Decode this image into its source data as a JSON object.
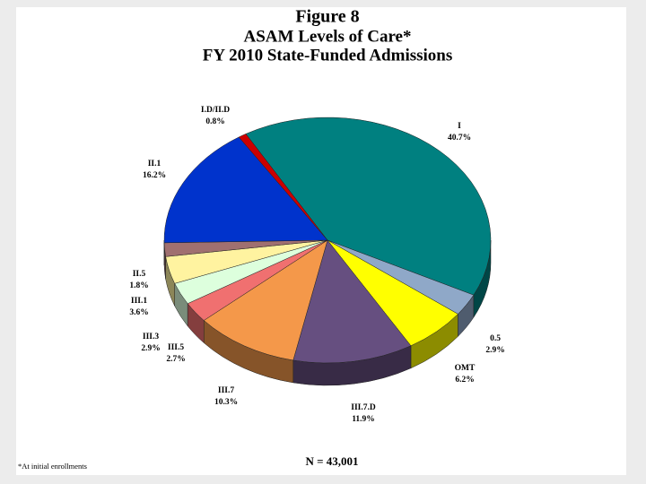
{
  "chart_data": {
    "type": "pie",
    "title": "Figure 8",
    "subtitle": "ASAM Levels of Care*",
    "subtitle2": "FY 2010 State-Funded Admissions",
    "categories": [
      "I",
      "0.5",
      "OMT",
      "III.7.D",
      "III.7",
      "III.5",
      "III.3",
      "III.1",
      "II.5",
      "II.1",
      "I.D/II.D"
    ],
    "values": [
      40.7,
      2.9,
      6.2,
      11.9,
      10.3,
      2.7,
      2.9,
      3.6,
      1.8,
      16.2,
      0.8
    ],
    "value_labels": [
      "40.7%",
      "2.9%",
      "6.2%",
      "11.9%",
      "10.3%",
      "2.7%",
      "2.9%",
      "3.6%",
      "1.8%",
      "16.2%",
      "0.8%"
    ],
    "colors": [
      "#008080",
      "#8fa8c8",
      "#ffff00",
      "#664f80",
      "#f4984a",
      "#f07070",
      "#ddffdd",
      "#fff3a0",
      "#a07070",
      "#0033cc",
      "#cc0000"
    ],
    "annotation": "N = 43,001",
    "footnote": "*At initial enrollments"
  }
}
